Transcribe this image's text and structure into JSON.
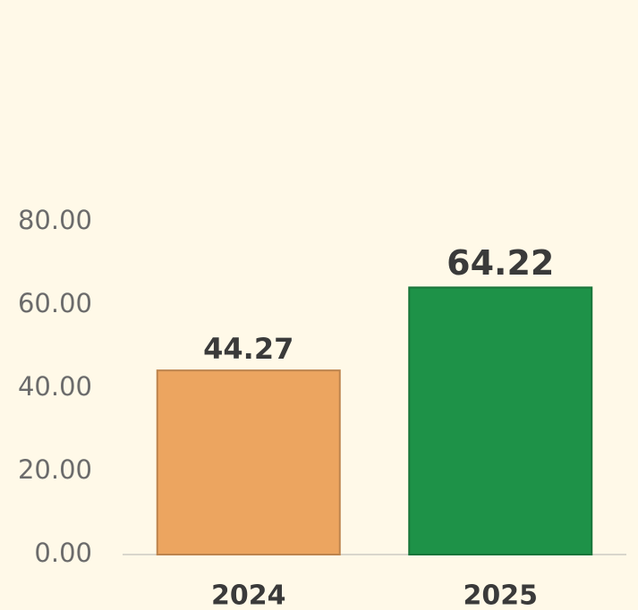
{
  "chart_data": {
    "type": "bar",
    "categories": [
      "2024",
      "2025"
    ],
    "values": [
      44.27,
      64.22
    ],
    "colors": [
      "#eca560",
      "#1e9248"
    ],
    "ylim": [
      0,
      80
    ],
    "yticks": [
      {
        "value": 0,
        "label": "0.00"
      },
      {
        "value": 20,
        "label": "20.00"
      },
      {
        "value": 40,
        "label": "40.00"
      },
      {
        "value": 60,
        "label": "60.00"
      },
      {
        "value": 80,
        "label": "80.00"
      }
    ],
    "grid": false
  }
}
